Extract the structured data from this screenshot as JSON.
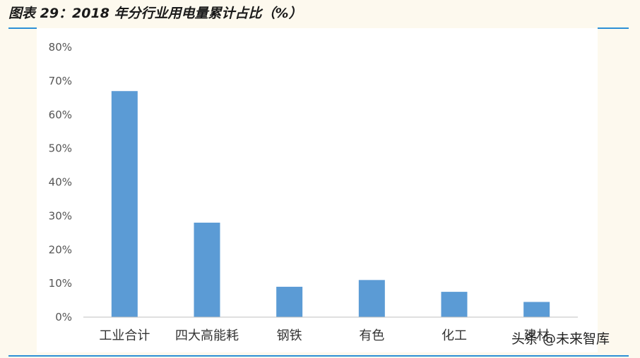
{
  "header": {
    "title": "图表 29：2018 年分行业用电量累计占比（%）"
  },
  "chart_data": {
    "type": "bar",
    "categories": [
      "工业合计",
      "四大高能耗",
      "钢铁",
      "有色",
      "化工",
      "建材"
    ],
    "values": [
      67,
      28,
      9,
      11,
      7.5,
      4.5
    ],
    "y_ticks": [
      "0%",
      "10%",
      "20%",
      "30%",
      "40%",
      "50%",
      "60%",
      "70%",
      "80%"
    ],
    "ylim": [
      0,
      80
    ],
    "bar_color": "#5b9bd5",
    "grid": false,
    "legend": "none"
  },
  "watermark": {
    "text": "头条 @未来智库"
  },
  "colors": {
    "accent": "#2c8fd6",
    "background": "#fdf9ee",
    "bar": "#5b9bd5"
  }
}
